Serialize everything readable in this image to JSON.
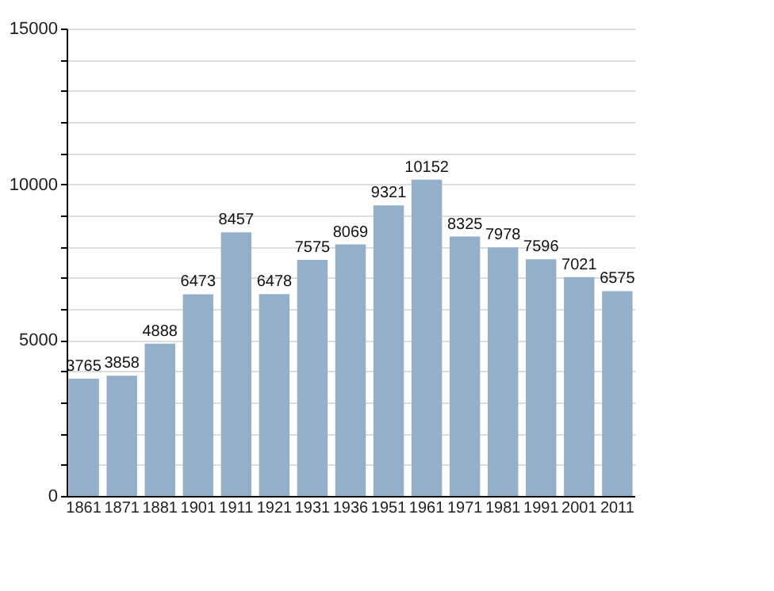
{
  "chart_data": {
    "type": "bar",
    "categories": [
      "1861",
      "1871",
      "1881",
      "1901",
      "1911",
      "1921",
      "1931",
      "1936",
      "1951",
      "1961",
      "1971",
      "1981",
      "1991",
      "2001",
      "2011"
    ],
    "values": [
      3765,
      3858,
      4888,
      6473,
      8457,
      6478,
      7575,
      8069,
      9321,
      10152,
      8325,
      7978,
      7596,
      7021,
      6575
    ],
    "color": "#94afc9",
    "data_labels": true,
    "ylim": [
      0,
      15000
    ],
    "yticks": [
      0,
      {
        "value": 1000,
        "label": null
      },
      {
        "value": 2000,
        "label": null
      },
      {
        "value": 3000,
        "label": null
      },
      {
        "value": 4000,
        "label": null
      },
      5000,
      {
        "value": 6000,
        "label": null
      },
      {
        "value": 7000,
        "label": null
      },
      {
        "value": 8000,
        "label": null
      },
      {
        "value": 9000,
        "label": null
      },
      10000,
      {
        "value": 11000,
        "label": null
      },
      {
        "value": 12000,
        "label": null
      },
      {
        "value": 13000,
        "label": null
      },
      {
        "value": 14000,
        "label": null
      },
      15000
    ],
    "grid": "y"
  }
}
